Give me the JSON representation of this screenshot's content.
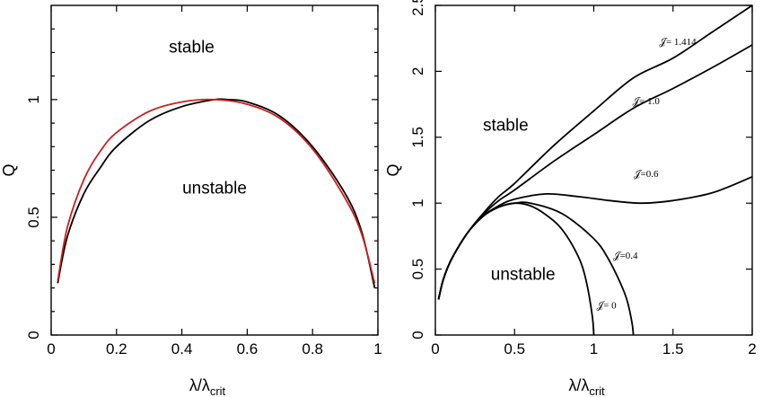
{
  "chart_data": [
    {
      "type": "line",
      "xlabel": "λ/λ",
      "xlabel_sub": "crit",
      "ylabel": "Q",
      "xlim": [
        0,
        1
      ],
      "ylim": [
        0,
        1.4
      ],
      "xticks": [
        "0",
        "0.2",
        "0.4",
        "0.6",
        "0.8",
        "1"
      ],
      "yticks": [
        "0",
        "0.5",
        "1"
      ],
      "annotations": [
        "stable",
        "unstable"
      ],
      "series": [
        {
          "color": "#000000",
          "x": [
            0.02,
            0.05,
            0.1,
            0.15,
            0.2,
            0.3,
            0.4,
            0.5,
            0.54,
            0.6,
            0.7,
            0.8,
            0.9,
            0.95,
            0.99
          ],
          "y": [
            0.22,
            0.42,
            0.6,
            0.71,
            0.8,
            0.91,
            0.97,
            1.0,
            1.0,
            0.99,
            0.93,
            0.8,
            0.6,
            0.44,
            0.2
          ]
        },
        {
          "color": "#cc1f1f",
          "x": [
            0.02,
            0.05,
            0.1,
            0.15,
            0.2,
            0.3,
            0.4,
            0.5,
            0.6,
            0.7,
            0.8,
            0.9,
            0.95,
            0.99
          ],
          "y": [
            0.23,
            0.46,
            0.66,
            0.78,
            0.86,
            0.95,
            0.99,
            1.0,
            0.98,
            0.92,
            0.79,
            0.58,
            0.43,
            0.22
          ]
        }
      ]
    },
    {
      "type": "line",
      "xlabel": "λ/λ",
      "xlabel_sub": "crit",
      "ylabel": "Q",
      "xlim": [
        0,
        2
      ],
      "ylim": [
        0,
        2.5
      ],
      "xticks": [
        "0",
        "0.5",
        "1",
        "1.5",
        "2"
      ],
      "yticks": [
        "0",
        "0.5",
        "1",
        "1.5",
        "2",
        "2.5"
      ],
      "annotations": [
        "stable",
        "unstable"
      ],
      "series": [
        {
          "label": "𝒥= 1.414",
          "x": [
            0.02,
            0.05,
            0.1,
            0.2,
            0.3,
            0.4,
            0.5,
            0.75,
            1.0,
            1.25,
            1.5,
            1.75,
            2.0
          ],
          "y": [
            0.27,
            0.42,
            0.57,
            0.77,
            0.92,
            1.05,
            1.15,
            1.44,
            1.7,
            1.95,
            2.1,
            2.3,
            2.5
          ]
        },
        {
          "label": "𝒥= 1.0",
          "x": [
            0.02,
            0.05,
            0.1,
            0.2,
            0.3,
            0.4,
            0.5,
            0.75,
            1.0,
            1.25,
            1.5,
            1.75,
            2.0
          ],
          "y": [
            0.27,
            0.42,
            0.57,
            0.77,
            0.91,
            1.02,
            1.1,
            1.32,
            1.52,
            1.72,
            1.87,
            2.03,
            2.2
          ]
        },
        {
          "label": "𝒥=0.6",
          "x": [
            0.02,
            0.05,
            0.1,
            0.2,
            0.3,
            0.4,
            0.5,
            0.7,
            0.9,
            1.1,
            1.3,
            1.5,
            1.75,
            2.0
          ],
          "y": [
            0.27,
            0.42,
            0.57,
            0.77,
            0.9,
            0.98,
            1.03,
            1.07,
            1.05,
            1.02,
            1.0,
            1.02,
            1.08,
            1.2
          ]
        },
        {
          "label": "𝒥=0.4",
          "x": [
            0.02,
            0.05,
            0.1,
            0.2,
            0.3,
            0.4,
            0.5,
            0.6,
            0.8,
            1.0,
            1.1,
            1.2,
            1.24,
            1.25
          ],
          "y": [
            0.27,
            0.42,
            0.57,
            0.77,
            0.9,
            0.97,
            1.0,
            1.0,
            0.92,
            0.73,
            0.56,
            0.3,
            0.1,
            0.0
          ]
        },
        {
          "label": "𝒥= 0",
          "x": [
            0.02,
            0.05,
            0.1,
            0.2,
            0.3,
            0.4,
            0.5,
            0.6,
            0.7,
            0.8,
            0.9,
            0.95,
            0.99,
            1.0
          ],
          "y": [
            0.27,
            0.42,
            0.57,
            0.77,
            0.9,
            0.97,
            1.0,
            0.98,
            0.91,
            0.8,
            0.6,
            0.42,
            0.15,
            0.0
          ]
        }
      ]
    }
  ]
}
